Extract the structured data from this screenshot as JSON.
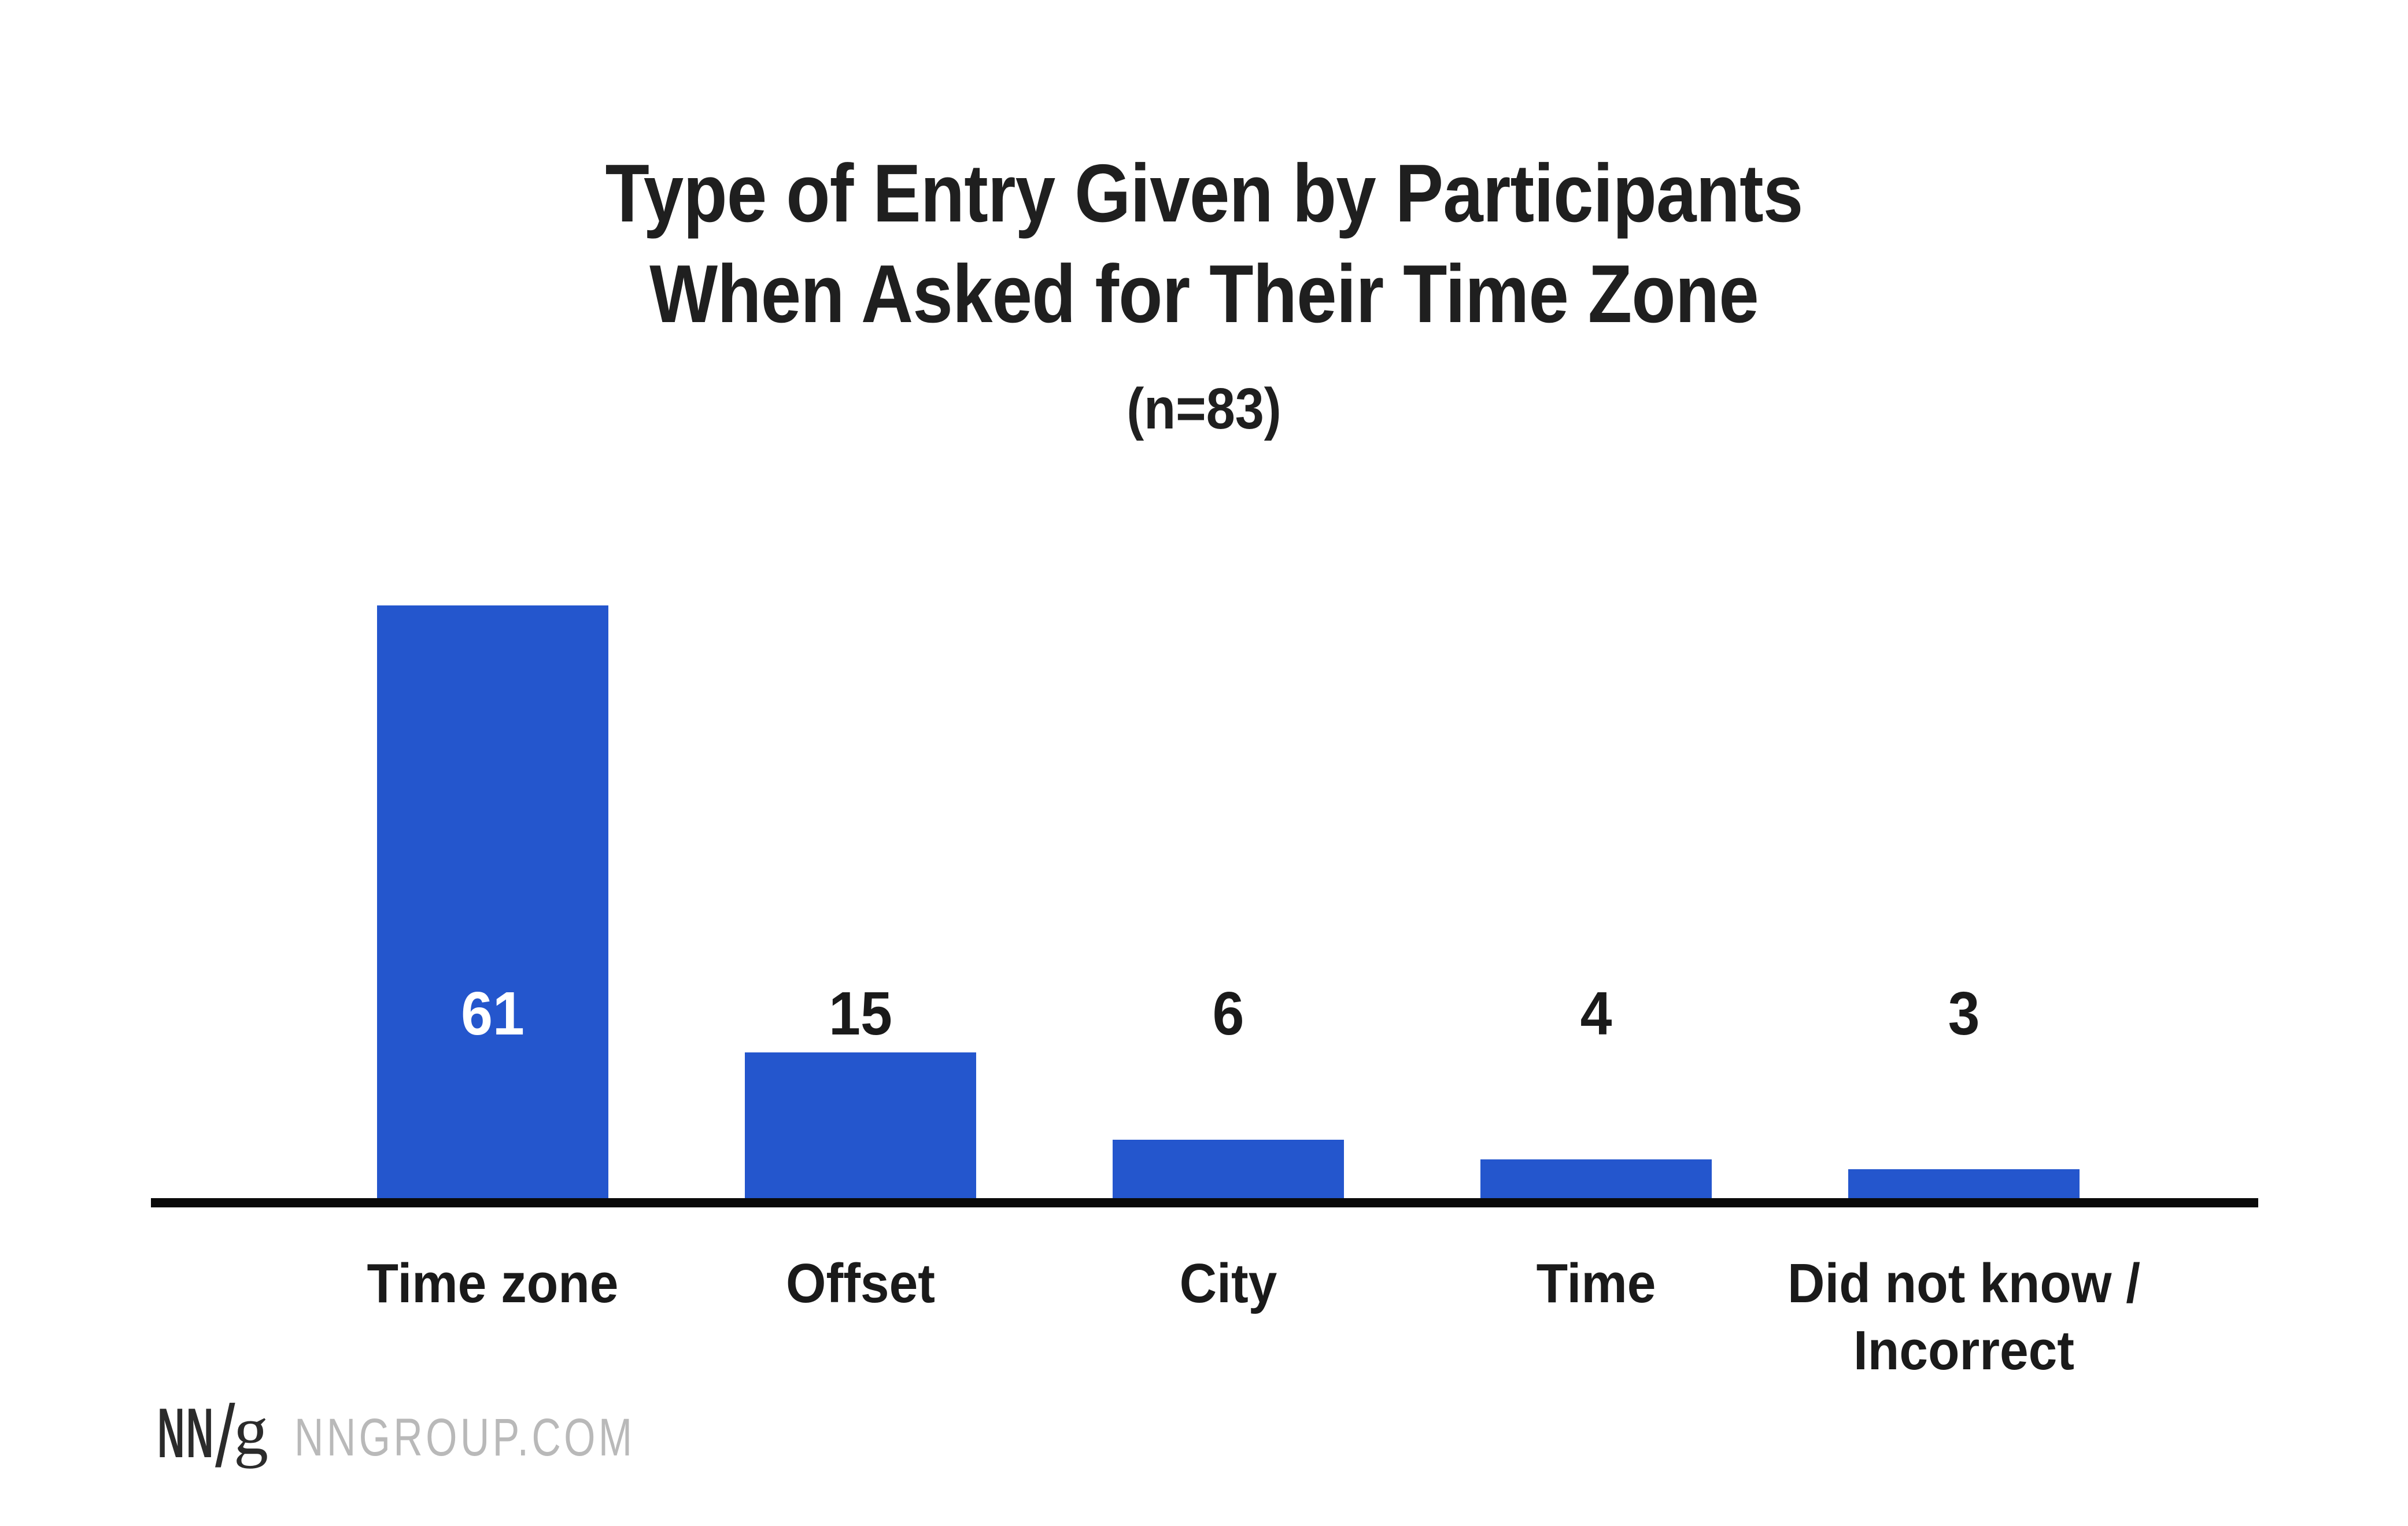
{
  "chart_data": {
    "type": "bar",
    "title_line1": "Type of Entry Given by Participants",
    "title_line2": "When Asked for Their Time Zone",
    "subtitle": "(n=83)",
    "categories": [
      "Time zone",
      "Offset",
      "City",
      "Time",
      "Did not know / Incorrect"
    ],
    "category_label_lines": [
      [
        "Time zone"
      ],
      [
        "Offset"
      ],
      [
        "City"
      ],
      [
        "Time"
      ],
      [
        "Did not know /",
        "Incorrect"
      ]
    ],
    "values": [
      61,
      15,
      6,
      4,
      3
    ],
    "xlabel": "",
    "ylabel": "",
    "ylim": [
      0,
      63
    ],
    "gridlines": false,
    "legend_position": "none",
    "bar_color": "#2456CD",
    "axis_color": "#0A0A0A",
    "title_color": "#1F1F1F",
    "value_label_color_inside_bar": "#FFFFFF",
    "value_label_color_above_bar": "#1A1A1A"
  },
  "footer": {
    "logo_nn": "NN",
    "logo_slash": "/",
    "logo_g": "g",
    "logo_color": "#2B2B2B",
    "website": "NNGROUP.COM",
    "website_color": "#B9B9B9"
  }
}
